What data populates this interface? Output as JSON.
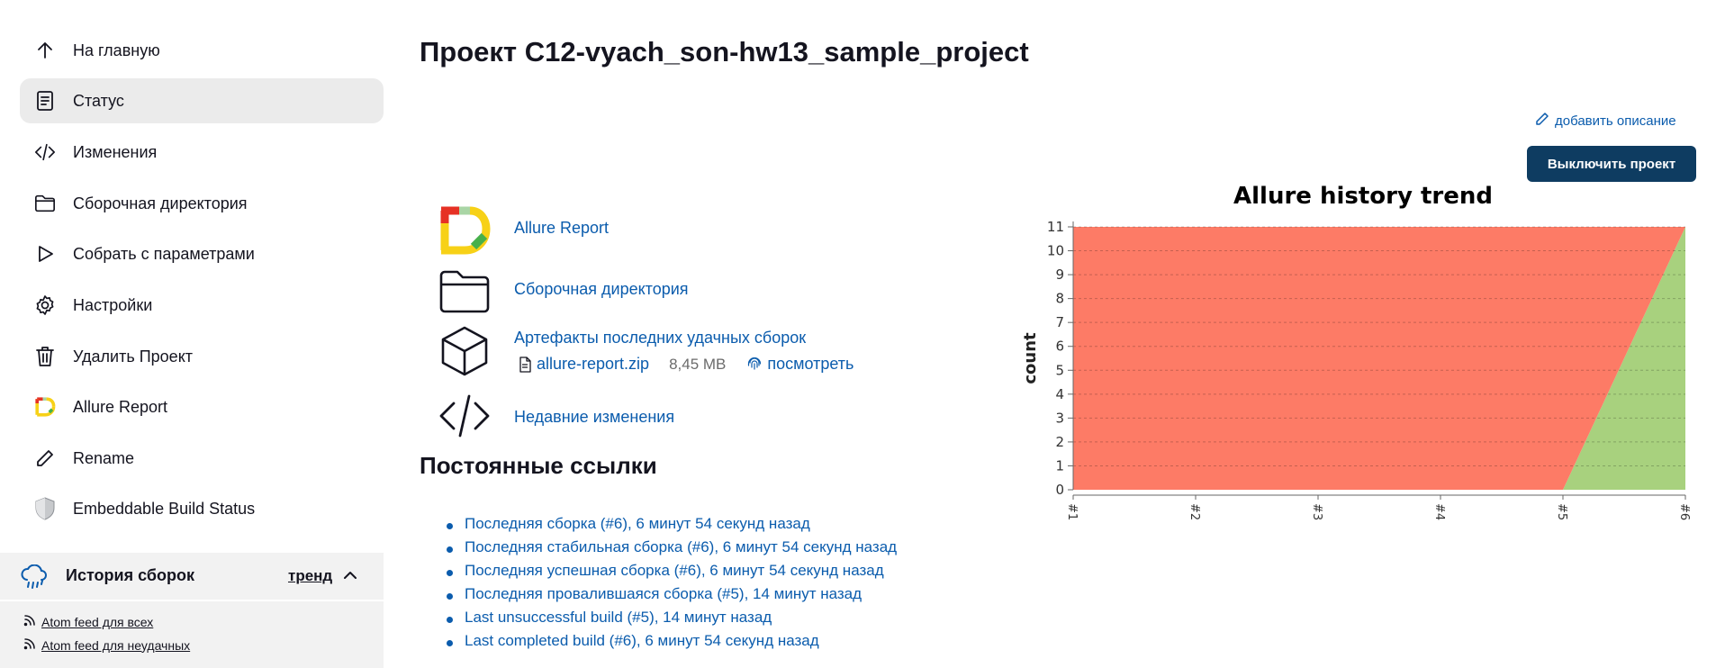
{
  "sidebar": {
    "items": [
      {
        "label": "На главную",
        "icon": "arrow-up-icon"
      },
      {
        "label": "Статус",
        "icon": "document-icon",
        "active": true
      },
      {
        "label": "Изменения",
        "icon": "code-icon"
      },
      {
        "label": "Сборочная директория",
        "icon": "folder-icon"
      },
      {
        "label": "Собрать с параметрами",
        "icon": "play-icon"
      },
      {
        "label": "Настройки",
        "icon": "gear-icon"
      },
      {
        "label": "Удалить Проект",
        "icon": "trash-icon"
      },
      {
        "label": "Allure Report",
        "icon": "allure-logo-icon"
      },
      {
        "label": "Rename",
        "icon": "pencil-icon"
      },
      {
        "label": "Embeddable Build Status",
        "icon": "shield-icon"
      }
    ]
  },
  "history": {
    "title": "История сборок",
    "trend": "тренд",
    "feed_all": "Atom feed для всех",
    "feed_failed": "Atom feed для неудачных"
  },
  "main": {
    "title": "Проект C12-vyach_son-hw13_sample_project",
    "add_description": "добавить описание",
    "disable_button": "Выключить проект",
    "links": {
      "allure_report": "Allure Report",
      "workspace": "Сборочная директория",
      "artifacts": "Артефакты последних удачных сборок",
      "artifact_file": "allure-report.zip",
      "artifact_size": "8,45 MB",
      "artifact_view": "посмотреть",
      "recent_changes": "Недавние изменения"
    },
    "permalinks_title": "Постоянные ссылки",
    "permalinks": [
      "Последняя сборка (#6), 6 минут 54 секунд назад",
      "Последняя стабильная сборка (#6), 6 минут 54 секунд назад",
      "Последняя успешная сборка (#6), 6 минут 54 секунд назад",
      "Последняя провалившаяся сборка (#5), 14 минут назад",
      "Last unsuccessful build (#5), 14 минут назад",
      "Last completed build (#6), 6 минут 54 секунд назад"
    ]
  },
  "colors": {
    "accent": "#0b5cad",
    "button": "#0e3c61",
    "failed": "#fd7b66",
    "passed": "#a8d17e"
  },
  "chart_data": {
    "type": "area",
    "title": "Allure history trend",
    "ylabel": "count",
    "xlabel": "",
    "categories": [
      "#1",
      "#2",
      "#3",
      "#4",
      "#5",
      "#6"
    ],
    "ylim": [
      0,
      11
    ],
    "yticks": [
      0,
      1,
      2,
      3,
      4,
      5,
      6,
      7,
      8,
      9,
      10,
      11
    ],
    "stacked": true,
    "series": [
      {
        "key": "passed",
        "values": [
          0,
          0,
          0,
          0,
          0,
          11
        ],
        "color": "#a8d17e"
      },
      {
        "key": "failed",
        "values": [
          11,
          11,
          11,
          11,
          11,
          0
        ],
        "color": "#fd7b66"
      }
    ]
  }
}
